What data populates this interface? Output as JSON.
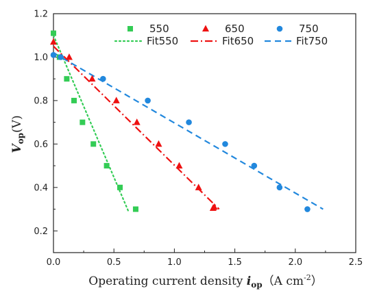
{
  "chart_data": {
    "type": "scatter",
    "xlabel": {
      "main": "Operating current density ",
      "var": "i",
      "sub": "op",
      "units_open": "（A cm",
      "units_sup": "-2",
      "units_close": "）"
    },
    "ylabel": {
      "var": "V",
      "sub": "op",
      "units": "(V)"
    },
    "xlim": [
      0.0,
      2.5
    ],
    "ylim": [
      0.1,
      1.2
    ],
    "x_ticks": [
      "0.0",
      "0.5",
      "1.0",
      "1.5",
      "2.0",
      "2.5"
    ],
    "y_ticks": [
      "0.2",
      "0.4",
      "0.6",
      "0.8",
      "1.0",
      "1.2"
    ],
    "grid": false,
    "legend_position": "top",
    "series": [
      {
        "name": "550",
        "marker": "square",
        "color": "#33cc55",
        "points": [
          [
            0.0,
            1.11
          ],
          [
            0.05,
            1.0
          ],
          [
            0.11,
            0.9
          ],
          [
            0.17,
            0.8
          ],
          [
            0.24,
            0.7
          ],
          [
            0.33,
            0.6
          ],
          [
            0.44,
            0.5
          ],
          [
            0.55,
            0.4
          ],
          [
            0.68,
            0.3
          ]
        ]
      },
      {
        "name": "650",
        "marker": "triangle",
        "color": "#ee1111",
        "points": [
          [
            0.0,
            1.07
          ],
          [
            0.13,
            1.0
          ],
          [
            0.32,
            0.9
          ],
          [
            0.52,
            0.8
          ],
          [
            0.69,
            0.7
          ],
          [
            0.87,
            0.6
          ],
          [
            1.04,
            0.5
          ],
          [
            1.2,
            0.4
          ],
          [
            1.32,
            0.305
          ],
          [
            1.33,
            0.31
          ]
        ]
      },
      {
        "name": "750",
        "marker": "circle",
        "color": "#2288dd",
        "points": [
          [
            0.0,
            1.01
          ],
          [
            0.06,
            1.0
          ],
          [
            0.41,
            0.9
          ],
          [
            0.78,
            0.8
          ],
          [
            1.12,
            0.7
          ],
          [
            1.42,
            0.6
          ],
          [
            1.66,
            0.5
          ],
          [
            1.87,
            0.4
          ],
          [
            2.1,
            0.3
          ]
        ]
      }
    ],
    "fits": [
      {
        "name": "Fit550",
        "color": "#33cc55",
        "dash": "dotted",
        "line": [
          [
            0.0,
            1.1
          ],
          [
            0.62,
            0.29
          ]
        ]
      },
      {
        "name": "Fit650",
        "color": "#ee1111",
        "dash": "dashdot",
        "line": [
          [
            0.0,
            1.05
          ],
          [
            1.37,
            0.3
          ]
        ]
      },
      {
        "name": "Fit750",
        "color": "#2288dd",
        "dash": "dashed",
        "line": [
          [
            0.0,
            1.02
          ],
          [
            2.23,
            0.3
          ]
        ]
      }
    ]
  }
}
